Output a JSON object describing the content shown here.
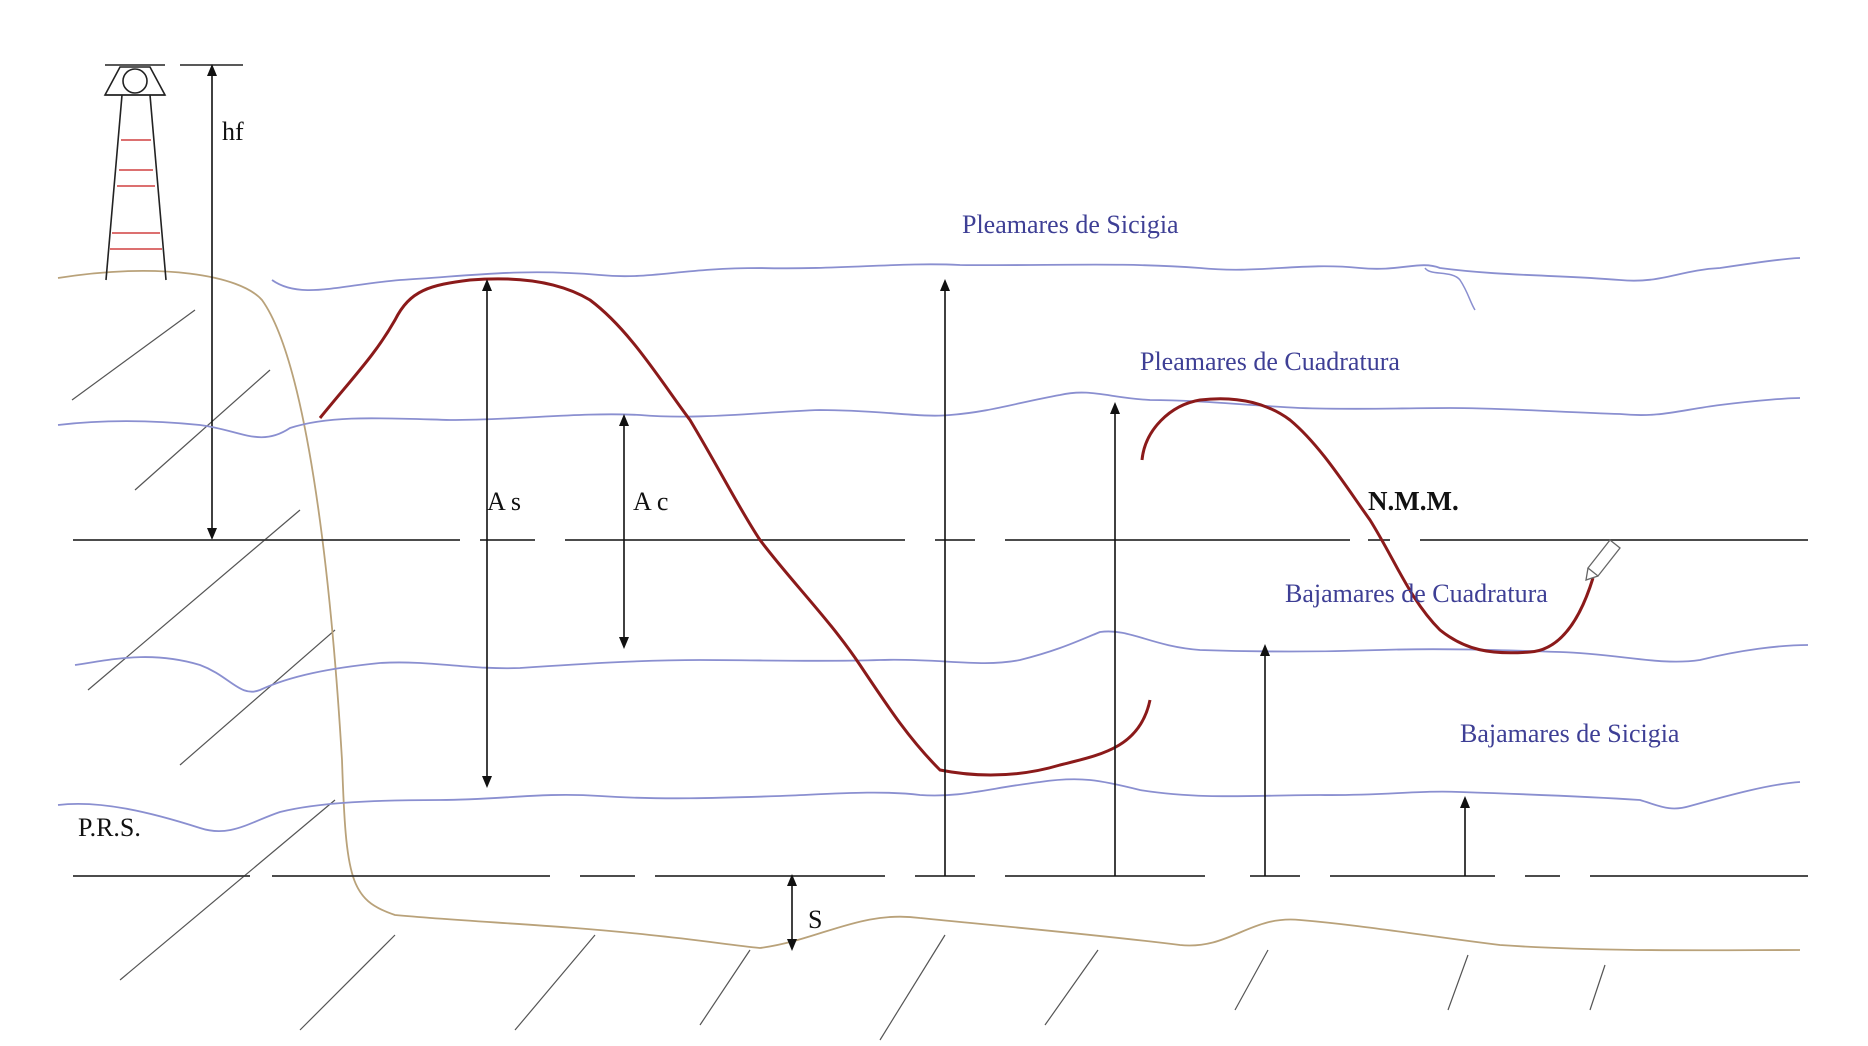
{
  "labels": {
    "pleamares_sicigia": "Pleamares de Sicigia",
    "pleamares_cuadratura": "Pleamares de Cuadratura",
    "bajamares_cuadratura": "Bajamares de Cuadratura",
    "bajamares_sicigia": "Bajamares de Sicigia",
    "nmm": "N.M.M.",
    "prs": "P.R.S.",
    "hf": "hf",
    "as": "A s",
    "ac": "A c",
    "s": "S"
  },
  "colors": {
    "tide_line": "#8a8fd0",
    "label_blue": "#3e3f95",
    "tide_curve": "#8b1a1a",
    "lighthouse_bands": "#d04040",
    "coast": "#b9a27a"
  },
  "icons": [
    "lighthouse-icon",
    "pencil-cursor-icon"
  ]
}
